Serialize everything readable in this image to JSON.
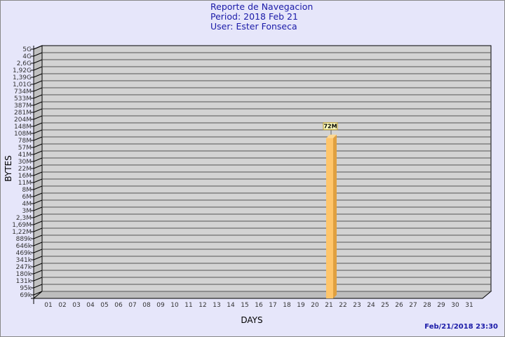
{
  "header": {
    "title": "Reporte de Navegacion",
    "period": "Period: 2018 Feb 21",
    "user": "User: Ester Fonseca"
  },
  "timestamp": "Feb/21/2018 23:30",
  "chart_data": {
    "type": "bar",
    "xlabel": "DAYS",
    "ylabel": "BYTES",
    "y_scale": "log",
    "y_tick_labels": [
      "5G",
      "4G",
      "2,6G",
      "1,92G",
      "1,39G",
      "1,01G",
      "734M",
      "533M",
      "387M",
      "281M",
      "204M",
      "148M",
      "108M",
      "78M",
      "57M",
      "41M",
      "30M",
      "22M",
      "16M",
      "11M",
      "8M",
      "6M",
      "4M",
      "3M",
      "2,3M",
      "1,69M",
      "1,22M",
      "889k",
      "646k",
      "469k",
      "341k",
      "247k",
      "180k",
      "131k",
      "95k",
      "69k"
    ],
    "categories": [
      "01",
      "02",
      "03",
      "04",
      "05",
      "06",
      "07",
      "08",
      "09",
      "10",
      "11",
      "12",
      "13",
      "14",
      "15",
      "16",
      "17",
      "18",
      "19",
      "20",
      "21",
      "22",
      "23",
      "24",
      "25",
      "26",
      "27",
      "28",
      "29",
      "30",
      "31"
    ],
    "values": [
      null,
      null,
      null,
      null,
      null,
      null,
      null,
      null,
      null,
      null,
      null,
      null,
      null,
      null,
      null,
      null,
      null,
      null,
      null,
      null,
      "72M",
      null,
      null,
      null,
      null,
      null,
      null,
      null,
      null,
      null,
      null
    ],
    "data_labels": {
      "21": "72M"
    },
    "colors": {
      "bar": "#ffc56a",
      "bar_side": "#e0a040",
      "plot": "#d3d3d3",
      "label_bg": "#ffffc0"
    }
  }
}
